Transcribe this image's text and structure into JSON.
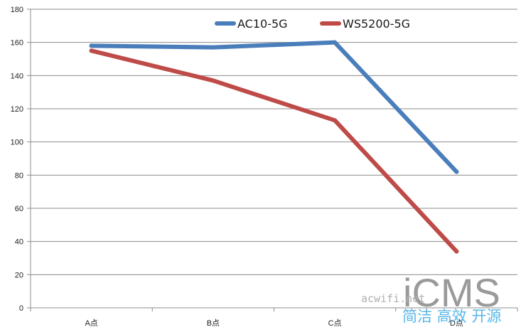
{
  "chart_data": {
    "type": "line",
    "categories": [
      "A点",
      "B点",
      "C点",
      "D点"
    ],
    "series": [
      {
        "name": "AC10-5G",
        "color": "#4a7ebb",
        "values": [
          158,
          157,
          160,
          82
        ]
      },
      {
        "name": "WS5200-5G",
        "color": "#be4b48",
        "values": [
          155,
          137,
          113,
          34
        ]
      }
    ],
    "ylim": [
      0,
      180
    ],
    "yticks": [
      0,
      20,
      40,
      60,
      80,
      100,
      120,
      140,
      160,
      180
    ],
    "title": "",
    "xlabel": "",
    "ylabel": "",
    "grid": true,
    "legend_position": "top-center"
  },
  "watermark": {
    "logo": "iCMS",
    "site": "acwifi.net",
    "slogan": "简洁 高效 开源"
  }
}
